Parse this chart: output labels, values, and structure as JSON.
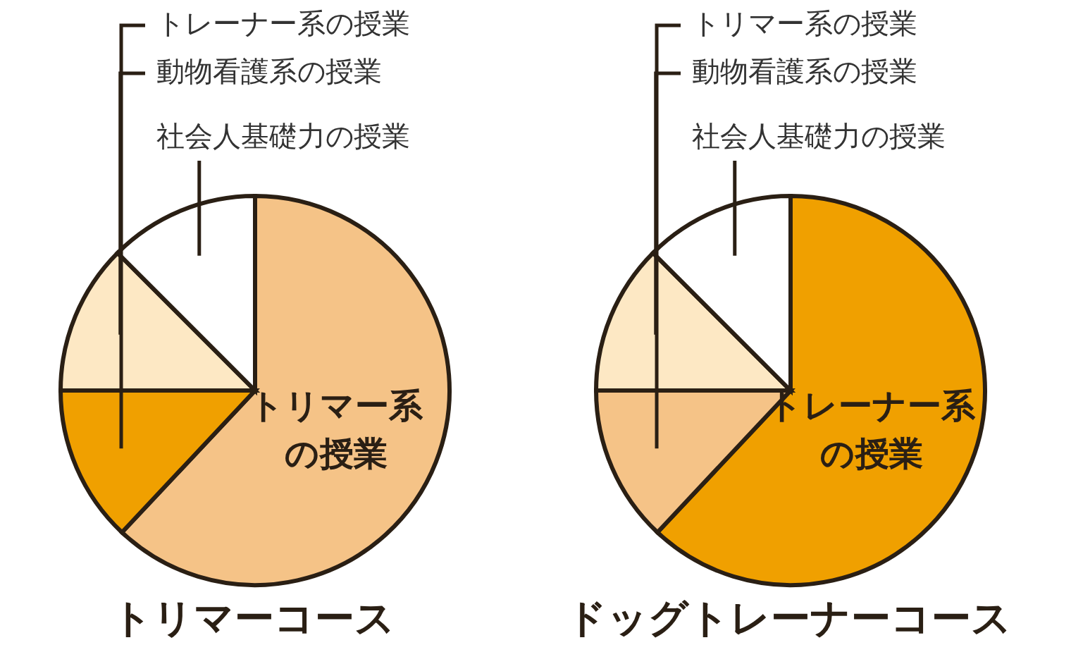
{
  "chart_data": [
    {
      "type": "pie",
      "title": "トリマーコース",
      "categories": [
        "トリマー系の授業",
        "トレーナー系の授業",
        "動物看護系の授業",
        "社会人基礎力の授業"
      ],
      "values": [
        62,
        13,
        12.5,
        12.5
      ],
      "colors": [
        "#f5c387",
        "#f0a000",
        "#fde8c4",
        "#ffffff"
      ]
    },
    {
      "type": "pie",
      "title": "ドッグトレーナーコース",
      "categories": [
        "トレーナー系の授業",
        "トリマー系の授業",
        "動物看護系の授業",
        "社会人基礎力の授業"
      ],
      "values": [
        62,
        13,
        12.5,
        12.5
      ],
      "colors": [
        "#f0a000",
        "#f5c387",
        "#fde8c4",
        "#ffffff"
      ]
    }
  ]
}
